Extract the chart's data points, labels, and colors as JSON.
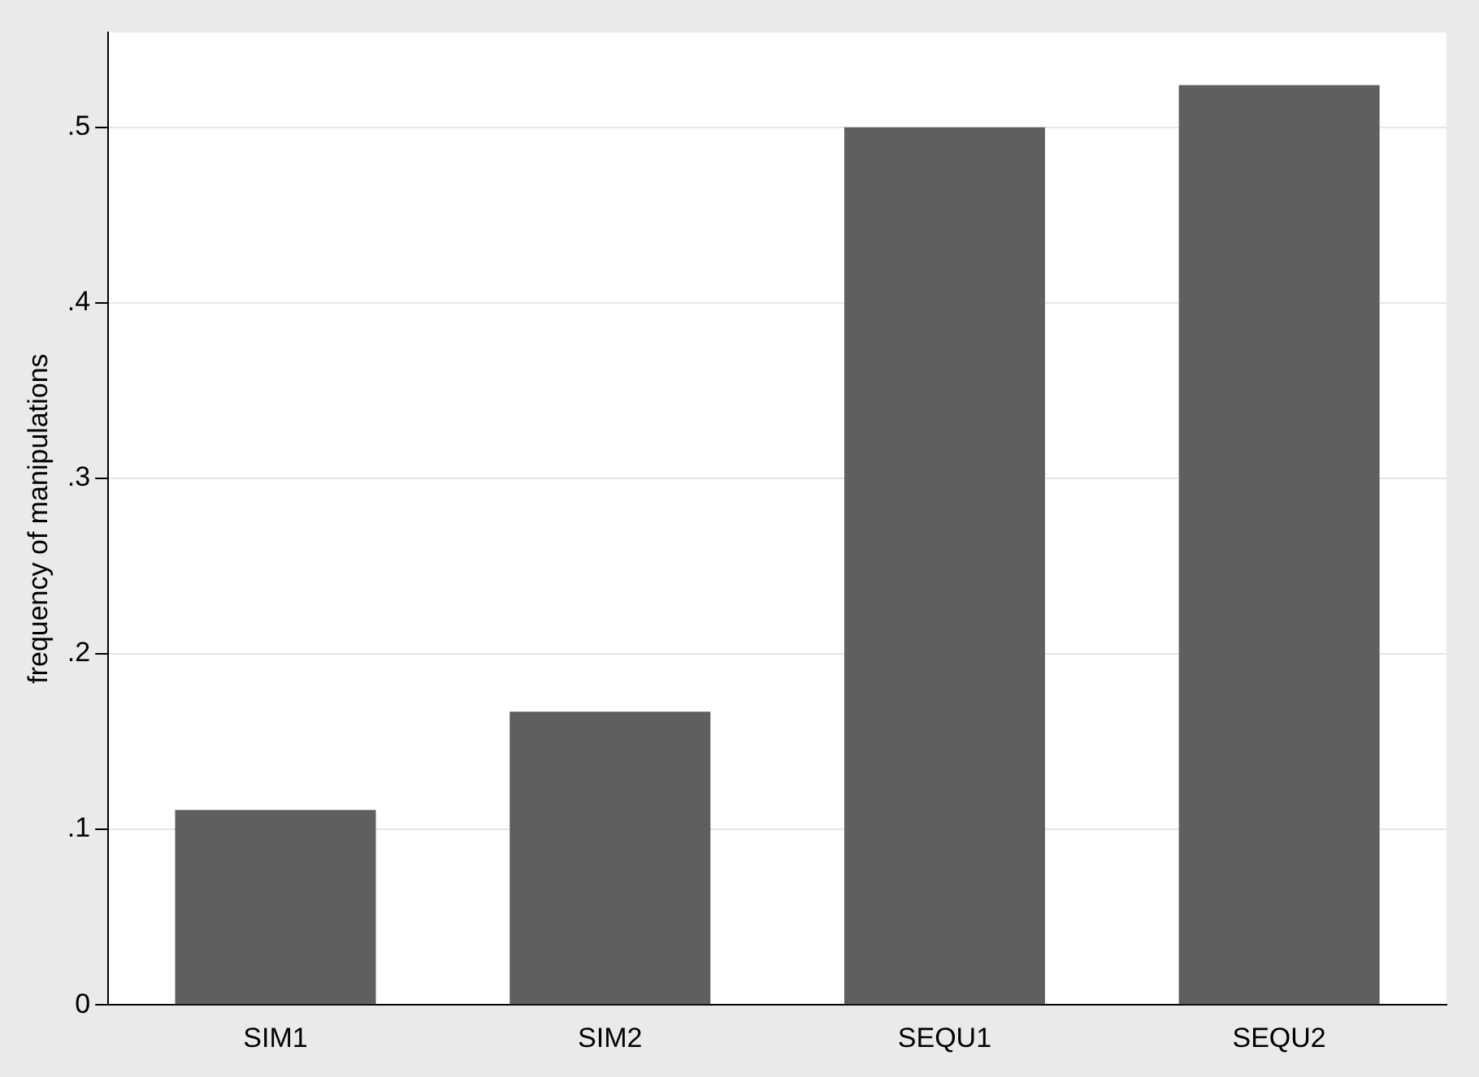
{
  "chart_data": {
    "type": "bar",
    "ylabel": "frequency of manipulations",
    "categories": [
      "SIM1",
      "SIM2",
      "SEQU1",
      "SEQU2"
    ],
    "values": [
      0.111,
      0.167,
      0.5,
      0.524
    ],
    "color": "#5f5f5f",
    "ylim": [
      0,
      0.554
    ],
    "yticks": [
      0,
      {
        "value": 0.1,
        "label": ".1"
      },
      {
        "value": 0.2,
        "label": ".2"
      },
      {
        "value": 0.3,
        "label": ".3"
      },
      {
        "value": 0.4,
        "label": ".4"
      },
      {
        "value": 0.5,
        "label": ".5"
      }
    ],
    "grid": "y",
    "legend": false
  }
}
